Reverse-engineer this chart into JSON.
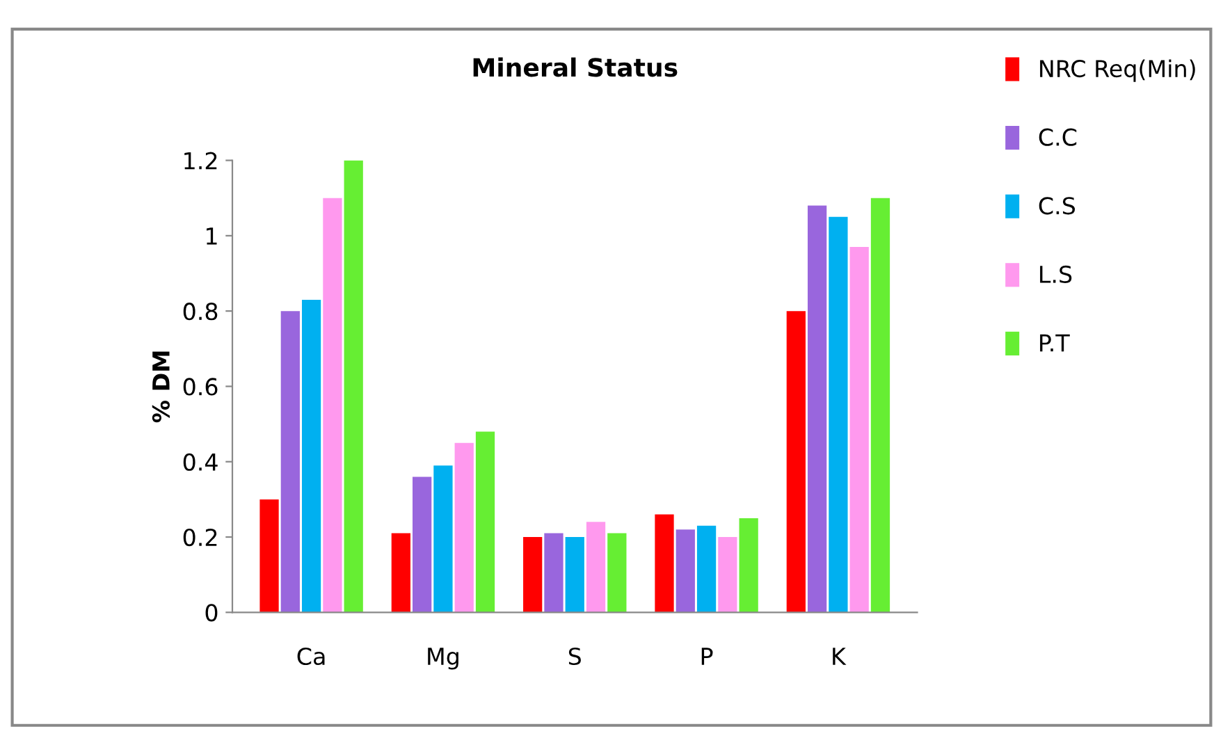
{
  "chart_data": {
    "type": "bar",
    "title": "Mineral Status",
    "ylabel": "% DM",
    "categories": [
      "Ca",
      "Mg",
      "S",
      "P",
      "K"
    ],
    "series": [
      {
        "name": "NRC Req(Min)",
        "color": "#ff0000",
        "values": [
          0.3,
          0.21,
          0.2,
          0.26,
          0.8
        ]
      },
      {
        "name": "C.C",
        "color": "#9966dd",
        "values": [
          0.8,
          0.36,
          0.21,
          0.22,
          1.08
        ]
      },
      {
        "name": "C.S",
        "color": "#00b0f0",
        "values": [
          0.83,
          0.39,
          0.2,
          0.23,
          1.05
        ]
      },
      {
        "name": "L.S",
        "color": "#ff99ee",
        "values": [
          1.1,
          0.45,
          0.24,
          0.2,
          0.97
        ]
      },
      {
        "name": "P.T",
        "color": "#66ee33",
        "values": [
          1.2,
          0.48,
          0.21,
          0.25,
          1.1
        ]
      }
    ],
    "ylim": [
      0,
      1.2
    ],
    "yticks": [
      0,
      0.2,
      0.4,
      0.6,
      0.8,
      1,
      1.2
    ],
    "grid": false,
    "legend": "right"
  }
}
